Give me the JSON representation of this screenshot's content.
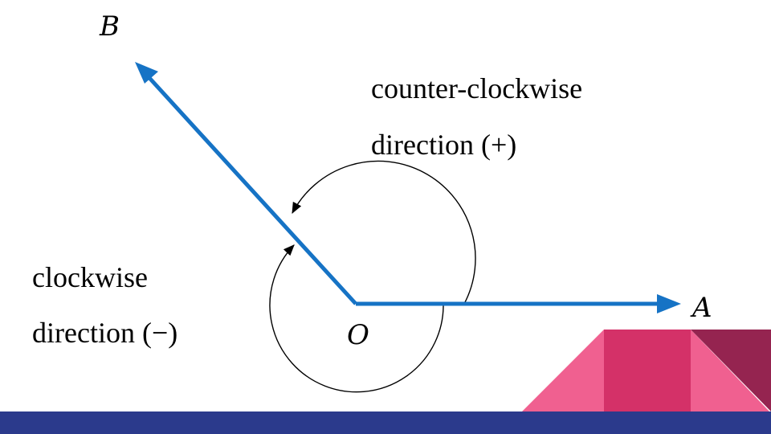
{
  "colors": {
    "ray": "#1673c5",
    "bar": "#2b3a8c",
    "pink_light": "#f06090",
    "pink_mid": "#d43168",
    "pink_dark": "#952450"
  },
  "diagram": {
    "labels": {
      "origin": "O",
      "point_a": "A",
      "point_b": "B"
    },
    "ccw": {
      "line1": "counter-clockwise",
      "line2": "direction (+)"
    },
    "cw": {
      "line1": "clockwise",
      "line2": "direction (−)"
    }
  }
}
